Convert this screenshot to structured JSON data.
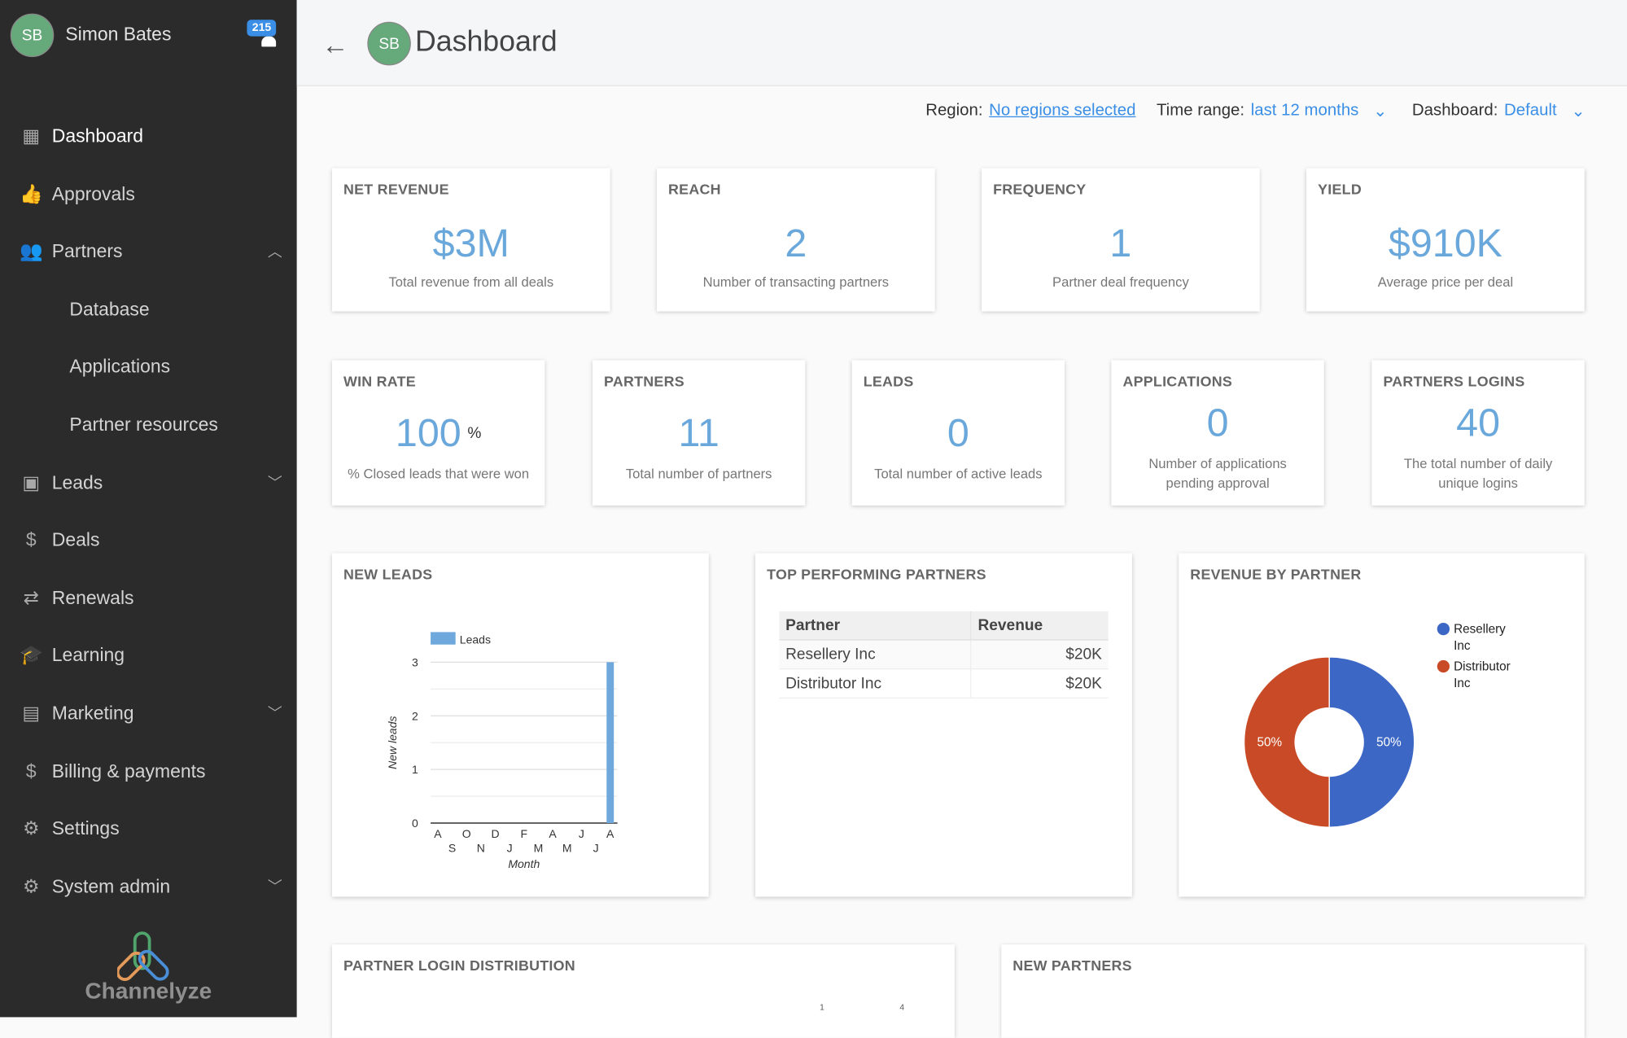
{
  "user": {
    "initials": "SB",
    "name": "Simon Bates",
    "notifications": "215"
  },
  "sidebar": {
    "items": [
      {
        "label": "Dashboard",
        "icon": "dashboard-icon",
        "glyph": "▦"
      },
      {
        "label": "Approvals",
        "icon": "thumbs-up-icon",
        "glyph": "👍"
      },
      {
        "label": "Partners",
        "icon": "people-icon",
        "glyph": "👥"
      },
      {
        "label": "Database"
      },
      {
        "label": "Applications"
      },
      {
        "label": "Partner resources"
      },
      {
        "label": "Leads",
        "icon": "contact-folder-icon",
        "glyph": "▣"
      },
      {
        "label": "Deals",
        "icon": "dollar-icon",
        "glyph": "$"
      },
      {
        "label": "Renewals",
        "icon": "repeat-icon",
        "glyph": "⇄"
      },
      {
        "label": "Learning",
        "icon": "graduation-cap-icon",
        "glyph": "🎓"
      },
      {
        "label": "Marketing",
        "icon": "store-icon",
        "glyph": "▤"
      },
      {
        "label": "Billing & payments",
        "icon": "billing-icon",
        "glyph": "$"
      },
      {
        "label": "Settings",
        "icon": "gear-icon",
        "glyph": "⚙"
      },
      {
        "label": "System admin",
        "icon": "admin-gear-icon",
        "glyph": "⚙"
      }
    ],
    "brand": "Channelyze"
  },
  "header": {
    "title": "Dashboard",
    "initials": "SB"
  },
  "filters": {
    "region_label": "Region:",
    "region_value": "No regions selected",
    "time_label": "Time range:",
    "time_value": "last 12 months",
    "dashboard_label": "Dashboard:",
    "dashboard_value": "Default"
  },
  "kpis_row1": [
    {
      "title": "NET REVENUE",
      "value": "$3M",
      "desc": "Total revenue from all deals"
    },
    {
      "title": "REACH",
      "value": "2",
      "desc": "Number of transacting partners"
    },
    {
      "title": "FREQUENCY",
      "value": "1",
      "desc": "Partner deal frequency"
    },
    {
      "title": "YIELD",
      "value": "$910K",
      "desc": "Average price per deal"
    }
  ],
  "kpis_row2": [
    {
      "title": "WIN RATE",
      "value": "100",
      "unit": "%",
      "desc": "% Closed leads that were won"
    },
    {
      "title": "PARTNERS",
      "value": "11",
      "desc": "Total number of partners"
    },
    {
      "title": "LEADS",
      "value": "0",
      "desc": "Total number of active leads"
    },
    {
      "title": "APPLICATIONS",
      "value": "0",
      "desc": "Number of applications pending approval"
    },
    {
      "title": "PARTNERS LOGINS",
      "value": "40",
      "desc": "The total number of daily unique logins"
    }
  ],
  "new_leads": {
    "title": "NEW LEADS"
  },
  "top_partners": {
    "title": "TOP PERFORMING PARTNERS",
    "columns": [
      "Partner",
      "Revenue"
    ],
    "rows": [
      [
        "Resellery Inc",
        "$20K"
      ],
      [
        "Distributor Inc",
        "$20K"
      ]
    ]
  },
  "revenue_by_partner": {
    "title": "REVENUE BY PARTNER"
  },
  "login_distribution": {
    "title": "PARTNER LOGIN DISTRIBUTION",
    "tick_a": "1",
    "tick_b": "4"
  },
  "new_partners": {
    "title": "NEW PARTNERS"
  },
  "chart_data": [
    {
      "type": "bar",
      "title": "",
      "xlabel": "Month",
      "ylabel": "New leads",
      "legend": "top",
      "categories": [
        "A",
        "S",
        "O",
        "N",
        "D",
        "J",
        "F",
        "M",
        "A",
        "M",
        "J",
        "J",
        "A"
      ],
      "series": [
        {
          "name": "Leads",
          "values": [
            0,
            0,
            0,
            0,
            0,
            0,
            0,
            0,
            0,
            0,
            0,
            0,
            3
          ],
          "color": "#6fa8dc"
        }
      ],
      "ylim": [
        0,
        3
      ],
      "yticks": [
        "0",
        "1",
        "2",
        "3"
      ],
      "grid": true
    },
    {
      "type": "pie",
      "donut": true,
      "legend": "right",
      "slices": [
        {
          "name": "Resellery Inc",
          "value": 50,
          "label": "50%",
          "color": "#3d67c5"
        },
        {
          "name": "Distributor Inc",
          "value": 50,
          "label": "50%",
          "color": "#c94a26"
        }
      ]
    }
  ]
}
